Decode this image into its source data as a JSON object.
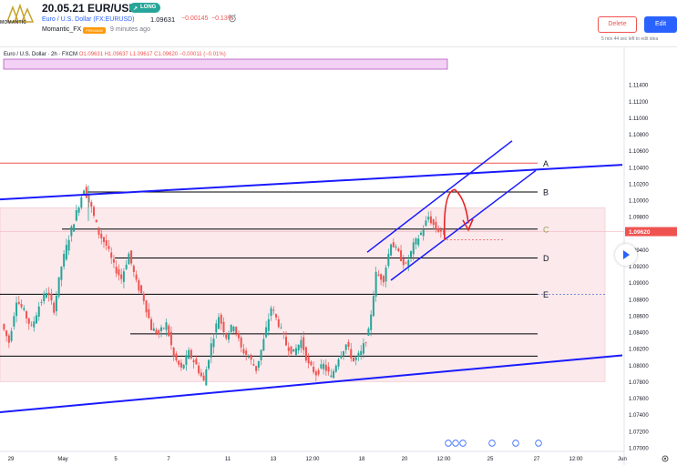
{
  "header": {
    "logo_text": "MOMANTIC",
    "title": "20.05.21 EUR/USD",
    "direction_label": "LONG",
    "symbol": "Euro / U.S. Dollar (FX:EURUSD)",
    "price": "1.09631",
    "change": "−0.00145",
    "change_pct": "−0.13%",
    "author": "Momantic_FX",
    "author_badge": "PREMIUM",
    "time_ago": "9 minutes ago",
    "delete_label": "Delete",
    "edit_label": "Edit",
    "edit_note": "5 min 44 sec left to edit idea"
  },
  "chart_info": {
    "symbol_line": "Euro / U.S. Dollar · 2h · FXCM",
    "ohlc": "O1.09631 H1.09637 L1.09617 C1.09620 −0.00011 (−0.01%)"
  },
  "colors": {
    "up": "#26a69a",
    "down": "#ef5350",
    "channel": "#1a1aff",
    "level": "#000000",
    "red_level": "#ef5350",
    "zone": "#fbe9ec",
    "price_tag": "#ef5350"
  },
  "chart_data": {
    "type": "candlestick",
    "y_axis": {
      "ylim": [
        1.07,
        1.117
      ],
      "ticks": [
        "1.11400",
        "1.11200",
        "1.11000",
        "1.10800",
        "1.10600",
        "1.10400",
        "1.10200",
        "1.10000",
        "1.09800",
        "1.09600",
        "1.09400",
        "1.09200",
        "1.09000",
        "1.08800",
        "1.08600",
        "1.08400",
        "1.08200",
        "1.08000",
        "1.07800",
        "1.07600",
        "1.07400",
        "1.07200",
        "1.07000"
      ],
      "tick_values": [
        1.114,
        1.112,
        1.11,
        1.108,
        1.106,
        1.104,
        1.102,
        1.1,
        1.098,
        1.096,
        1.094,
        1.092,
        1.09,
        1.088,
        1.086,
        1.084,
        1.082,
        1.08,
        1.078,
        1.076,
        1.074,
        1.072,
        1.07
      ],
      "current_price_label": "1.09620",
      "current_price": 1.0962
    },
    "x_axis": {
      "ticks": [
        "29",
        "May",
        "5",
        "7",
        "11",
        "13",
        "12:00",
        "18",
        "20",
        "12:00",
        "25",
        "27",
        "12:00",
        "Jun"
      ]
    },
    "levels": [
      {
        "label": "A",
        "value": 1.1045,
        "color": "#ef5350"
      },
      {
        "label": "B",
        "value": 1.101
      },
      {
        "label": "C",
        "value": 1.0965,
        "label_color": "#9aa05a"
      },
      {
        "label": "D",
        "value": 1.093
      },
      {
        "label": "E",
        "value": 1.0886
      }
    ],
    "extra_levels": [
      1.0838,
      1.0811
    ],
    "zone": {
      "top": 1.0991,
      "bottom": 1.078
    },
    "candles_close_path": [
      1.085,
      1.0828,
      1.088,
      1.0865,
      1.0845,
      1.0872,
      1.089,
      1.0868,
      1.092,
      1.0955,
      1.0985,
      1.1015,
      1.099,
      1.096,
      1.0945,
      1.092,
      1.0905,
      1.0935,
      1.09,
      1.088,
      1.0845,
      1.0838,
      1.085,
      1.081,
      1.0795,
      1.0815,
      1.08,
      1.078,
      1.0825,
      1.086,
      1.0835,
      1.085,
      1.082,
      1.081,
      1.0795,
      1.083,
      1.087,
      1.085,
      1.0825,
      1.0815,
      1.083,
      1.08,
      1.079,
      1.08,
      1.0785,
      1.081,
      1.0825,
      1.0805,
      1.0815,
      1.084,
      1.091,
      1.0905,
      1.095,
      1.0935,
      1.092,
      1.0945,
      1.096,
      1.098,
      1.0965,
      1.0962
    ]
  }
}
